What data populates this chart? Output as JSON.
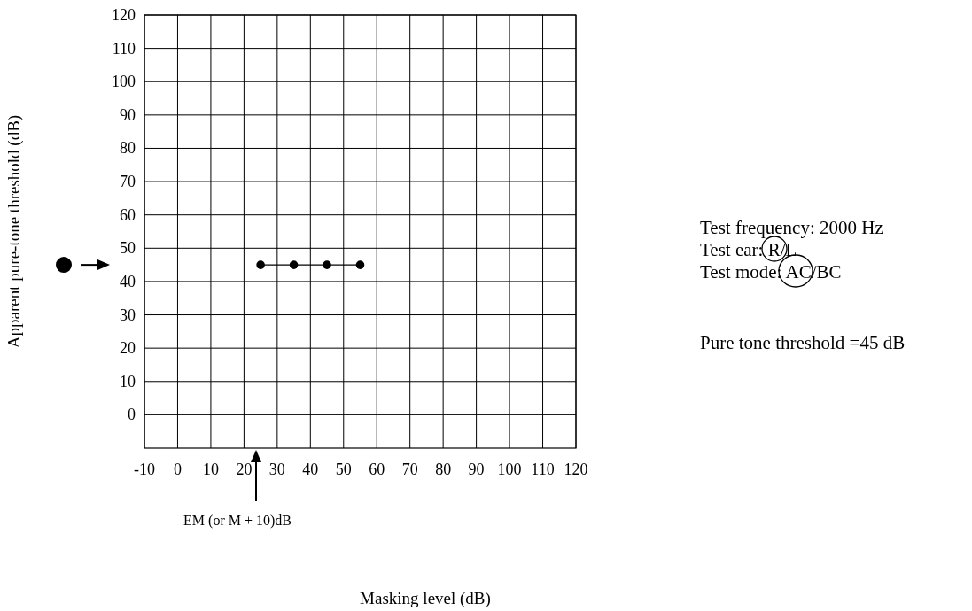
{
  "chart_data": {
    "type": "line",
    "xlim": [
      -10,
      120
    ],
    "xticks": [
      -10,
      0,
      10,
      20,
      30,
      40,
      50,
      60,
      70,
      80,
      90,
      100,
      110,
      120
    ],
    "ylim": [
      -10,
      120
    ],
    "yticks": [
      0,
      10,
      20,
      30,
      40,
      50,
      60,
      70,
      80,
      90,
      100,
      110,
      120
    ],
    "grid": true,
    "marker": "circle",
    "line_style": "solid",
    "series": [
      {
        "color": "#000000",
        "x": [
          25,
          35,
          45,
          55
        ],
        "values": [
          45,
          45,
          45,
          45
        ]
      }
    ],
    "annotations": [
      "EM (or M + 10)dB",
      "Masking level (dB)",
      "Apparent pure-tone threshold (dB)",
      "Test frequency: 2000 Hz",
      "Test ear: R/L",
      "Test mode: AC/BC",
      "Pure tone threshold =45 dB"
    ]
  }
}
